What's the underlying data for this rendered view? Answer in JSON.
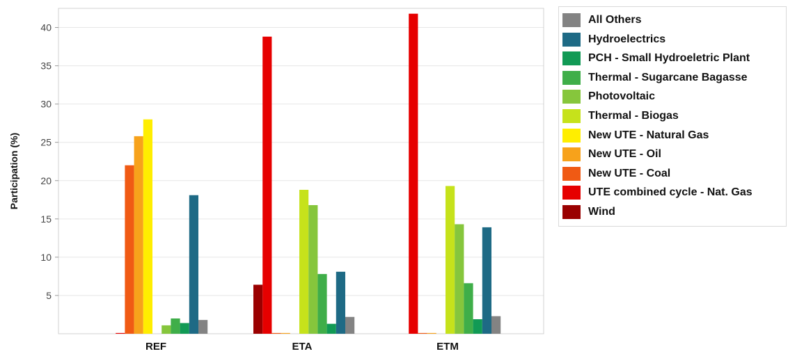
{
  "chart_data": {
    "type": "bar",
    "ylabel": "Participation (%)",
    "xlabel": "",
    "ylim": [
      0,
      42.5
    ],
    "yticks": [
      5,
      10,
      15,
      20,
      25,
      30,
      35,
      40
    ],
    "grid": true,
    "legend_position": "right",
    "categories": [
      "REF",
      "ETA",
      "ETM"
    ],
    "series": [
      {
        "name": "Wind",
        "color": "#9a0000",
        "values": [
          0,
          6.4,
          0
        ]
      },
      {
        "name": "UTE combined cycle - Nat. Gas",
        "color": "#e60000",
        "values": [
          0.1,
          38.8,
          41.8
        ]
      },
      {
        "name": "New UTE - Coal",
        "color": "#f05a14",
        "values": [
          22.0,
          0.1,
          0.1
        ]
      },
      {
        "name": "New UTE - Oil",
        "color": "#f7a21b",
        "values": [
          25.8,
          0.1,
          0.1
        ]
      },
      {
        "name": "New UTE - Natural Gas",
        "color": "#ffee00",
        "values": [
          28.0,
          0,
          0
        ]
      },
      {
        "name": "Thermal - Biogas",
        "color": "#c6e21b",
        "values": [
          0,
          18.8,
          19.3
        ]
      },
      {
        "name": "Photovoltaic",
        "color": "#86c63c",
        "values": [
          1.1,
          16.8,
          14.3
        ]
      },
      {
        "name": "Thermal - Sugarcane Bagasse",
        "color": "#3fae49",
        "values": [
          2.0,
          7.8,
          6.6
        ]
      },
      {
        "name": "PCH - Small Hydroeletric Plant",
        "color": "#119a55",
        "values": [
          1.4,
          1.3,
          1.9
        ]
      },
      {
        "name": "Hydroelectrics",
        "color": "#1e6a85",
        "values": [
          18.1,
          8.1,
          13.9
        ]
      },
      {
        "name": "All Others",
        "color": "#838383",
        "values": [
          1.8,
          2.2,
          2.3
        ]
      }
    ]
  },
  "legend": {
    "items": [
      {
        "label": "All Others",
        "color": "#838383"
      },
      {
        "label": "Hydroelectrics",
        "color": "#1e6a85"
      },
      {
        "label": "PCH - Small Hydroeletric Plant",
        "color": "#119a55"
      },
      {
        "label": "Thermal - Sugarcane Bagasse",
        "color": "#3fae49"
      },
      {
        "label": "Photovoltaic",
        "color": "#86c63c"
      },
      {
        "label": "Thermal - Biogas",
        "color": "#c6e21b"
      },
      {
        "label": "New UTE - Natural Gas",
        "color": "#ffee00"
      },
      {
        "label": "New UTE - Oil",
        "color": "#f7a21b"
      },
      {
        "label": "New UTE - Coal",
        "color": "#f05a14"
      },
      {
        "label": "UTE combined cycle - Nat. Gas",
        "color": "#e60000"
      },
      {
        "label": "Wind",
        "color": "#9a0000"
      }
    ]
  }
}
